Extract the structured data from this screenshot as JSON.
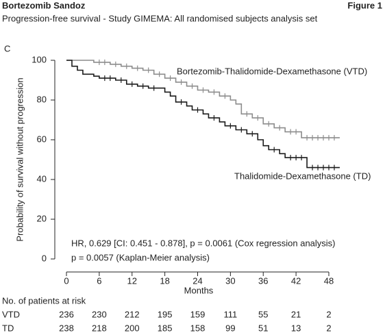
{
  "header": {
    "company": "Bortezomib Sandoz",
    "figure": "Figure 1",
    "subtitle": "Progression-free survival - Study GIMEMA: All randomised subjects analysis set"
  },
  "chart_data": {
    "type": "step",
    "panel": "C",
    "x_label": "Months",
    "y_label": "Probability of survival without progression",
    "xlim": [
      0,
      48
    ],
    "xticks": [
      0,
      6,
      12,
      18,
      24,
      30,
      36,
      42,
      48
    ],
    "ylim": [
      0,
      100
    ],
    "yticks": [
      0,
      20,
      40,
      60,
      80,
      100
    ],
    "series": [
      {
        "name": "Bortezomib-Thalidomide-Dexamethasone (VTD)",
        "color": "#8c8c8c",
        "x": [
          0,
          3,
          5,
          8,
          10,
          12,
          14,
          16,
          18,
          20,
          22,
          24,
          26,
          28,
          30,
          31,
          32,
          34,
          36,
          38,
          40,
          43,
          50
        ],
        "values": [
          100,
          100,
          99,
          98,
          97,
          96,
          95,
          93,
          91,
          89,
          87,
          85,
          84,
          82,
          80,
          78,
          73,
          71,
          68,
          66,
          64,
          61,
          61
        ],
        "censored": {
          "x": [
            6,
            7,
            9,
            11,
            13,
            15,
            17,
            19,
            21,
            23,
            25,
            27,
            29,
            33,
            35,
            37,
            39,
            41,
            42,
            44,
            45,
            46,
            47,
            48,
            49
          ],
          "values": [
            99,
            99,
            98,
            97,
            96,
            95,
            93,
            91,
            89,
            87,
            85,
            84,
            82,
            73,
            71,
            68,
            66,
            64,
            64,
            61,
            61,
            61,
            61,
            61,
            61
          ]
        }
      },
      {
        "name": "Thalidomide-Dexamethasone (TD)",
        "color": "#1a1a1a",
        "x": [
          0,
          1,
          2,
          3,
          5,
          6,
          9,
          11,
          13,
          15,
          18,
          19,
          20,
          22,
          23,
          25,
          26,
          28,
          29,
          31,
          33,
          35,
          36,
          37,
          39,
          40,
          44,
          50
        ],
        "values": [
          100,
          97,
          95,
          93,
          92,
          91,
          90,
          88,
          87,
          86,
          84,
          82,
          79,
          77,
          75,
          73,
          71,
          69,
          67,
          65,
          63,
          60,
          57,
          55,
          53,
          51,
          46,
          46
        ],
        "censored": {
          "x": [
            7,
            8,
            10,
            12,
            14,
            16,
            21,
            24,
            27,
            30,
            32,
            34,
            38,
            41,
            42,
            43,
            45,
            46,
            47,
            48,
            49
          ],
          "values": [
            91,
            91,
            90,
            88,
            87,
            86,
            79,
            75,
            71,
            67,
            65,
            63,
            55,
            51,
            51,
            51,
            46,
            46,
            46,
            46,
            46
          ]
        }
      }
    ],
    "annotations": [
      "HR, 0.629 [CI: 0.451 - 0.878], p = 0.0061 (Cox regression analysis)",
      "p = 0.0057 (Kaplan-Meier analysis)"
    ]
  },
  "risk_table": {
    "title": "No. of patients at risk",
    "rows": [
      {
        "label": "VTD",
        "values": [
          236,
          230,
          212,
          195,
          159,
          111,
          55,
          21,
          2
        ]
      },
      {
        "label": "TD",
        "values": [
          238,
          218,
          200,
          185,
          158,
          99,
          51,
          13,
          2
        ]
      }
    ]
  }
}
